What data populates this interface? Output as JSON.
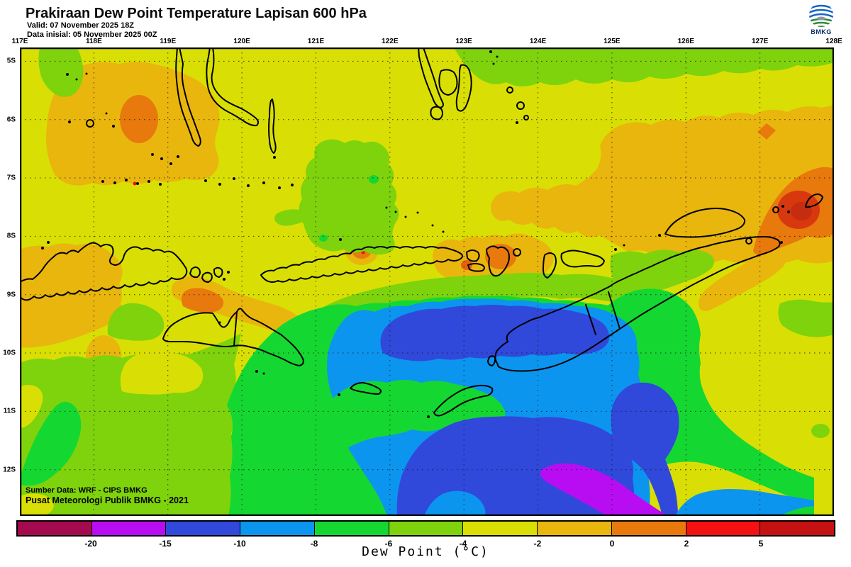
{
  "header": {
    "title": "Prakiraan Dew Point Temperature Lapisan 600 hPa",
    "valid_line": "Valid: 07 November 2025 18Z",
    "init_line": "Data inisial: 05 November 2025 00Z",
    "logo_text": "BMKG"
  },
  "axes": {
    "lon_labels": [
      "117E",
      "118E",
      "119E",
      "120E",
      "121E",
      "122E",
      "123E",
      "124E",
      "125E",
      "126E",
      "127E",
      "128E"
    ],
    "lat_labels": [
      "5S",
      "6S",
      "7S",
      "8S",
      "9S",
      "10S",
      "11S",
      "12S"
    ]
  },
  "attribution": {
    "line1": "Sumber Data: WRF - CIPS BMKG",
    "line2": "Pusat Meteorologi Publik BMKG - 2021"
  },
  "legend": {
    "title": "Dew Point (°C)",
    "ticks": [
      "-20",
      "-15",
      "-10",
      "-8",
      "-6",
      "-4",
      "-2",
      "0",
      "2",
      "5"
    ],
    "colors": [
      "#a50a4f",
      "#b80df2",
      "#3049db",
      "#0c95ef",
      "#15d732",
      "#7ed30c",
      "#d9df04",
      "#e9b60d",
      "#e8790d",
      "#f31111",
      "#c51111"
    ]
  },
  "palette": {
    "base": "#d9df04",
    "lime": "#7ed30c",
    "green": "#15d732",
    "lightblue": "#0c95ef",
    "royalblue": "#3049db",
    "magenta": "#b80df2",
    "amber": "#e9b60d",
    "orange": "#e8790d",
    "deep_orange": "#e8600f",
    "red_orange": "#d8380e",
    "dark_red": "#c52c10",
    "red": "#e81212",
    "coast": "#000000",
    "grid": "#1a1a1a",
    "logo_blue": "#1464c8",
    "logo_green": "#2d8a35",
    "logo_gray": "#8e9aa3"
  }
}
